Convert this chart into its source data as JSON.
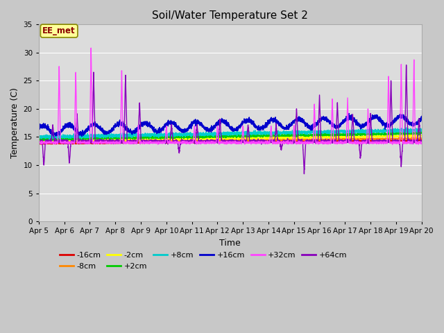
{
  "title": "Soil/Water Temperature Set 2",
  "xlabel": "Time",
  "ylabel": "Temperature (C)",
  "ylim": [
    0,
    35
  ],
  "yticks": [
    0,
    5,
    10,
    15,
    20,
    25,
    30,
    35
  ],
  "x_tick_labels": [
    "Apr 5",
    "Apr 6",
    "Apr 7",
    "Apr 8",
    "Apr 9",
    "Apr 10",
    "Apr 11",
    "Apr 12",
    "Apr 13",
    "Apr 14",
    "Apr 15",
    "Apr 16",
    "Apr 17",
    "Apr 18",
    "Apr 19",
    "Apr 20"
  ],
  "colors": {
    "-16cm": "#dd0000",
    "-8cm": "#ff8800",
    "-2cm": "#ffff00",
    "+2cm": "#00cc00",
    "+8cm": "#00cccc",
    "+16cm": "#0000cc",
    "+32cm": "#ff44ff",
    "+64cm": "#8800bb"
  },
  "legend_order": [
    "-16cm",
    "-8cm",
    "-2cm",
    "+2cm",
    "+8cm",
    "+16cm",
    "+32cm",
    "+64cm"
  ],
  "annotation_text": "EE_met",
  "bg_color": "#dcdcdc",
  "fig_bg": "#d8d8d8",
  "linewidth": 1.0,
  "figsize": [
    6.4,
    4.8
  ],
  "dpi": 100
}
